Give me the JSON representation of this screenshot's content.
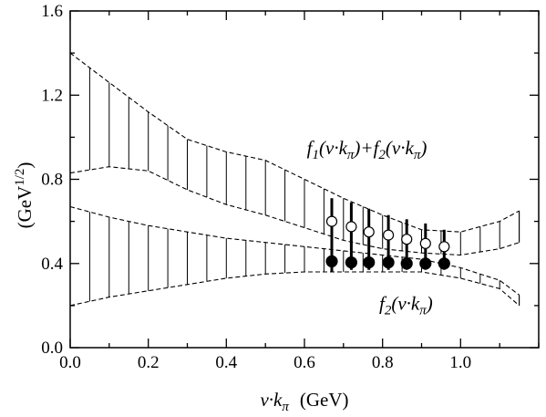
{
  "chart_data": {
    "type": "line",
    "title": "",
    "xlabel": {
      "main": "v·k",
      "sub": "π",
      "unit": "(GeV)"
    },
    "ylabel": {
      "main": "(GeV",
      "sup": "1/2",
      "close": ")"
    },
    "xlim": [
      0.0,
      1.2
    ],
    "ylim": [
      0.0,
      1.6
    ],
    "x_ticks": [
      0.0,
      0.2,
      0.4,
      0.6,
      0.8,
      1.0
    ],
    "x_tick_labels": [
      "0.0",
      "0.2",
      "0.4",
      "0.6",
      "0.8",
      "1.0"
    ],
    "y_ticks": [
      0.0,
      0.4,
      0.8,
      1.2,
      1.6
    ],
    "y_tick_labels": [
      "0.0",
      "0.4",
      "0.8",
      "1.2",
      "1.6"
    ],
    "grid": false,
    "bands": [
      {
        "name": "f1(v·kπ)+f2(v·kπ)",
        "x": [
          0.0,
          0.1,
          0.2,
          0.3,
          0.4,
          0.5,
          0.6,
          0.7,
          0.8,
          0.9,
          1.0,
          1.1,
          1.15
        ],
        "upper": [
          1.4,
          1.26,
          1.12,
          0.99,
          0.93,
          0.89,
          0.8,
          0.71,
          0.63,
          0.56,
          0.55,
          0.6,
          0.65
        ],
        "lower": [
          0.83,
          0.86,
          0.84,
          0.75,
          0.68,
          0.63,
          0.57,
          0.51,
          0.47,
          0.45,
          0.44,
          0.47,
          0.5
        ]
      },
      {
        "name": "f2(v·kπ)",
        "x": [
          0.0,
          0.1,
          0.2,
          0.3,
          0.4,
          0.5,
          0.6,
          0.7,
          0.8,
          0.9,
          1.0,
          1.1,
          1.15
        ],
        "upper": [
          0.67,
          0.62,
          0.58,
          0.55,
          0.52,
          0.5,
          0.48,
          0.46,
          0.44,
          0.42,
          0.38,
          0.32,
          0.25
        ],
        "lower": [
          0.2,
          0.24,
          0.27,
          0.3,
          0.33,
          0.35,
          0.36,
          0.36,
          0.36,
          0.36,
          0.33,
          0.28,
          0.2
        ]
      }
    ],
    "annotations": [
      {
        "parts": [
          {
            "t": "f"
          },
          {
            "t": "1",
            "sub": true
          },
          {
            "t": "(v·k"
          },
          {
            "t": "π",
            "sub": true
          },
          {
            "t": ")+f"
          },
          {
            "t": "2",
            "sub": true
          },
          {
            "t": "(v·k"
          },
          {
            "t": "π",
            "sub": true
          },
          {
            "t": ")"
          }
        ],
        "x": 0.76,
        "y": 0.92
      },
      {
        "parts": [
          {
            "t": "f"
          },
          {
            "t": "2",
            "sub": true
          },
          {
            "t": "(v·k"
          },
          {
            "t": "π",
            "sub": true
          },
          {
            "t": ")"
          }
        ],
        "x": 0.86,
        "y": 0.18
      }
    ],
    "series": [
      {
        "marker": "open-circle",
        "x": [
          0.67,
          0.72,
          0.765,
          0.815,
          0.862,
          0.91,
          0.958
        ],
        "y": [
          0.6,
          0.575,
          0.55,
          0.535,
          0.515,
          0.495,
          0.48
        ]
      },
      {
        "marker": "filled-circle",
        "x": [
          0.67,
          0.72,
          0.765,
          0.815,
          0.862,
          0.91,
          0.958
        ],
        "y": [
          0.41,
          0.405,
          0.405,
          0.405,
          0.4,
          0.4,
          0.4
        ],
        "error_y": {
          "lower": [
            0.36,
            0.37,
            0.37,
            0.37,
            0.37,
            0.37,
            0.37
          ],
          "upper": [
            0.71,
            0.69,
            0.66,
            0.63,
            0.61,
            0.59,
            0.56
          ]
        }
      }
    ]
  }
}
